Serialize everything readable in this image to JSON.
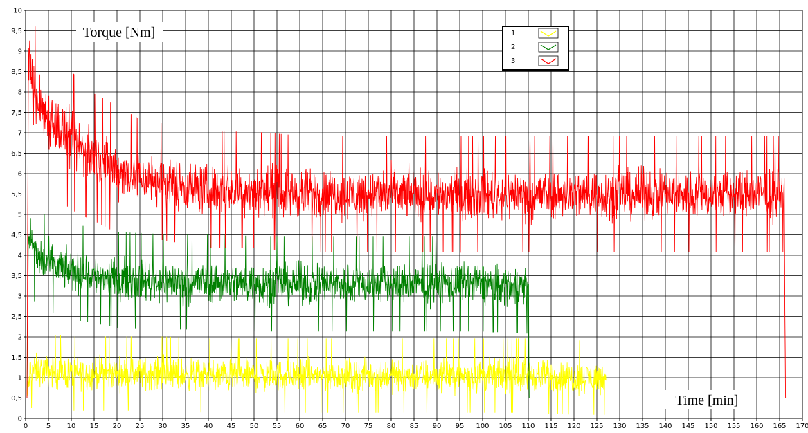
{
  "chart_data": {
    "type": "line",
    "ylabel": "Torque [Nm]",
    "xlabel": "Time [min]",
    "xlim": [
      0,
      170
    ],
    "ylim": [
      0,
      10
    ],
    "x_ticks": [
      0,
      5,
      10,
      15,
      20,
      25,
      30,
      35,
      40,
      45,
      50,
      55,
      60,
      65,
      70,
      75,
      80,
      85,
      90,
      95,
      100,
      105,
      110,
      115,
      120,
      125,
      130,
      135,
      140,
      145,
      150,
      155,
      160,
      165,
      170
    ],
    "y_ticks": [
      {
        "value": 0,
        "label": "0"
      },
      {
        "value": 0.5,
        "label": "0,5"
      },
      {
        "value": 1,
        "label": "1"
      },
      {
        "value": 1.5,
        "label": "1,5"
      },
      {
        "value": 2,
        "label": "2"
      },
      {
        "value": 2.5,
        "label": "2,5"
      },
      {
        "value": 3,
        "label": "3"
      },
      {
        "value": 3.5,
        "label": "3,5"
      },
      {
        "value": 4,
        "label": "4"
      },
      {
        "value": 4.5,
        "label": "4,5"
      },
      {
        "value": 5,
        "label": "5"
      },
      {
        "value": 5.5,
        "label": "5,5"
      },
      {
        "value": 6,
        "label": "6"
      },
      {
        "value": 6.5,
        "label": "6,5"
      },
      {
        "value": 7,
        "label": "7"
      },
      {
        "value": 7.5,
        "label": "7,5"
      },
      {
        "value": 8,
        "label": "8"
      },
      {
        "value": 8.5,
        "label": "8,5"
      },
      {
        "value": 9,
        "label": "9"
      },
      {
        "value": 9.5,
        "label": "9,5"
      },
      {
        "value": 10,
        "label": "10"
      }
    ],
    "grid": true,
    "legend_position": "top-right",
    "series": [
      {
        "name": "1",
        "color": "#ffff00",
        "x": [
          0.3,
          1,
          2,
          5,
          10,
          20,
          30,
          40,
          50,
          60,
          70,
          80,
          90,
          100,
          110,
          120,
          127
        ],
        "y": [
          0.5,
          1.15,
          1.2,
          1.15,
          1.1,
          1.1,
          1.1,
          1.05,
          1.05,
          1.05,
          1.05,
          1.05,
          1.05,
          1.05,
          1.05,
          1.0,
          1.0
        ],
        "band": [
          0.35,
          0.35,
          0.35,
          0.35,
          0.35,
          0.35,
          0.35,
          0.35,
          0.35,
          0.35,
          0.35,
          0.35,
          0.35,
          0.35,
          0.35,
          0.35,
          0.35
        ]
      },
      {
        "name": "2",
        "color": "#008000",
        "x": [
          0.3,
          0.6,
          1,
          2,
          3,
          5,
          10,
          15,
          20,
          30,
          40,
          50,
          60,
          70,
          80,
          90,
          100,
          110,
          110.2
        ],
        "y": [
          0.5,
          4.4,
          4.6,
          4.0,
          3.9,
          3.8,
          3.6,
          3.5,
          3.4,
          3.35,
          3.35,
          3.3,
          3.3,
          3.3,
          3.3,
          3.3,
          3.3,
          3.25,
          0.5
        ],
        "band": [
          0,
          0.3,
          0.4,
          0.45,
          0.45,
          0.45,
          0.45,
          0.45,
          0.45,
          0.45,
          0.45,
          0.45,
          0.45,
          0.45,
          0.45,
          0.45,
          0.45,
          0.45,
          0
        ]
      },
      {
        "name": "3",
        "color": "#ff0000",
        "x": [
          0.3,
          0.6,
          1,
          2,
          5,
          10,
          15,
          20,
          25,
          30,
          40,
          50,
          60,
          70,
          80,
          90,
          100,
          110,
          120,
          130,
          140,
          150,
          160,
          166,
          166.3
        ],
        "y": [
          0.5,
          8.5,
          8.8,
          7.8,
          7.4,
          6.8,
          6.4,
          6.1,
          5.9,
          5.8,
          5.6,
          5.6,
          5.5,
          5.5,
          5.5,
          5.5,
          5.5,
          5.5,
          5.5,
          5.5,
          5.5,
          5.5,
          5.5,
          5.5,
          0.5
        ],
        "band": [
          0,
          0.6,
          0.7,
          0.7,
          0.7,
          0.65,
          0.6,
          0.6,
          0.55,
          0.55,
          0.55,
          0.55,
          0.55,
          0.55,
          0.55,
          0.55,
          0.55,
          0.55,
          0.55,
          0.55,
          0.55,
          0.55,
          0.55,
          0.55,
          0
        ]
      }
    ],
    "legend": [
      {
        "label": "1",
        "color": "#ffff00"
      },
      {
        "label": "2",
        "color": "#008000"
      },
      {
        "label": "3",
        "color": "#ff0000"
      }
    ]
  }
}
